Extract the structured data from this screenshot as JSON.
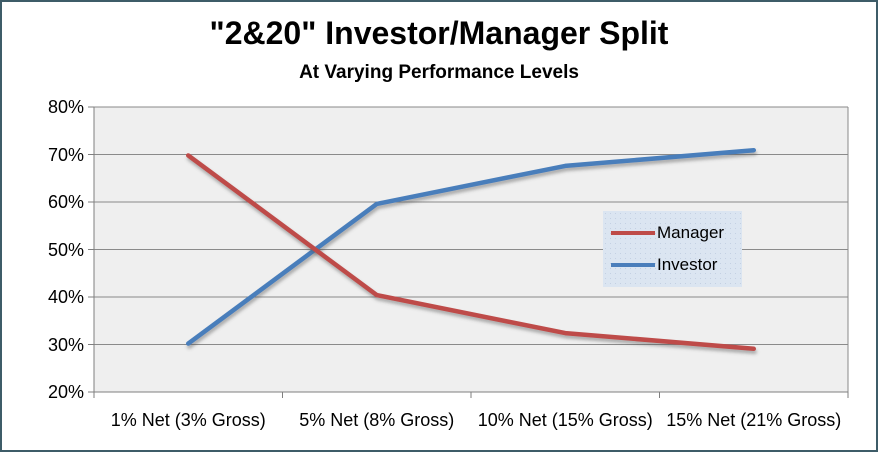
{
  "chart_data": {
    "type": "line",
    "title": "\"2&20\" Investor/Manager Split",
    "subtitle": "At Varying Performance Levels",
    "categories": [
      "1% Net (3% Gross)",
      "5% Net (8% Gross)",
      "10% Net (15% Gross)",
      "15% Net (21% Gross)"
    ],
    "series": [
      {
        "name": "Manager",
        "color": "#BE4B48",
        "values": [
          69.8,
          40.4,
          32.4,
          29.1
        ]
      },
      {
        "name": "Investor",
        "color": "#4A7EBB",
        "values": [
          30.2,
          59.6,
          67.6,
          70.9
        ]
      }
    ],
    "ylim": [
      20,
      80
    ],
    "y_ticks": [
      {
        "value": 80,
        "label": "80%"
      },
      {
        "value": 70,
        "label": "70%"
      },
      {
        "value": 60,
        "label": "60%"
      },
      {
        "value": 50,
        "label": "50%"
      },
      {
        "value": 40,
        "label": "40%"
      },
      {
        "value": 30,
        "label": "30%"
      },
      {
        "value": 20,
        "label": "20%"
      }
    ],
    "grid": true,
    "legend_position": "center-right",
    "colors": {
      "plot_bg": "#EFEFEF",
      "gridline": "#8A8A8A",
      "axis": "#7F7F7F",
      "legend_bg": "#DBE5F1",
      "frame_border": "#3E5C68",
      "text": "#000000"
    }
  }
}
